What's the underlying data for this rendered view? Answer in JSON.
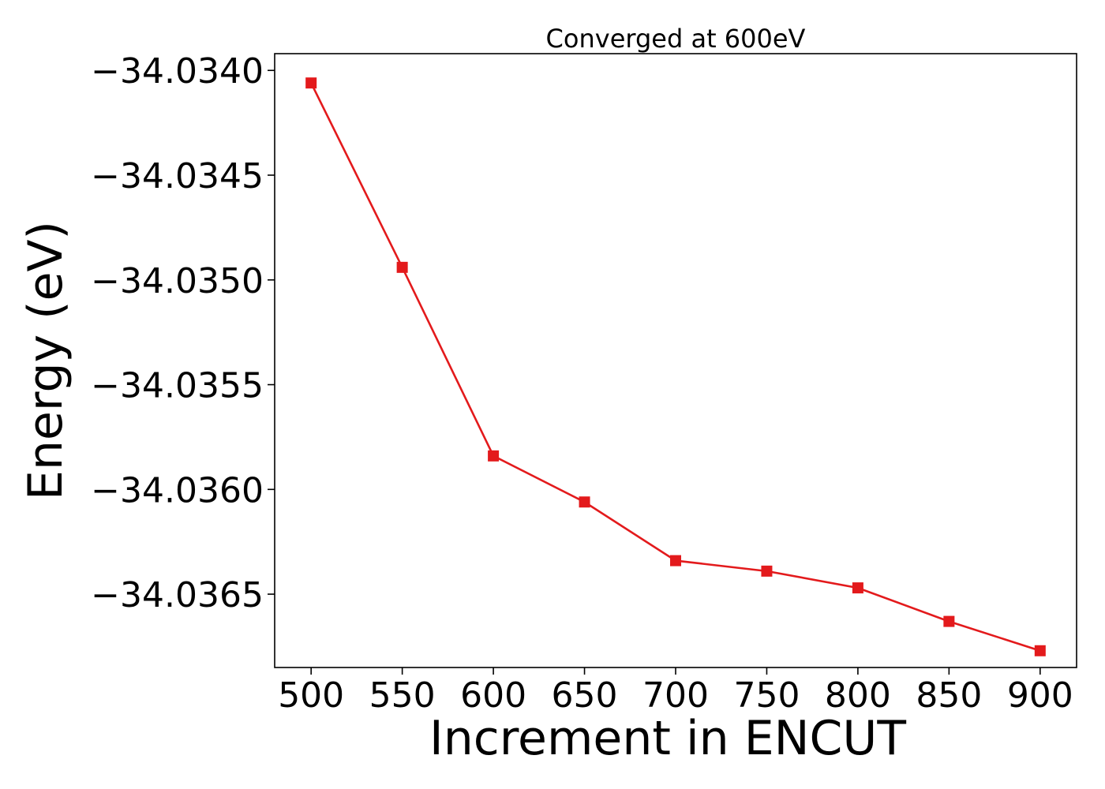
{
  "chart_data": {
    "type": "line",
    "title": "Converged at 600eV",
    "xlabel": "Increment in ENCUT",
    "ylabel": "Energy (eV)",
    "x": [
      500,
      550,
      600,
      650,
      700,
      750,
      800,
      850,
      900
    ],
    "series": [
      {
        "values": [
          -34.03406,
          -34.03494,
          -34.03584,
          -34.03606,
          -34.03634,
          -34.03639,
          -34.03647,
          -34.03663,
          -34.03677
        ],
        "color": "#e31a1c",
        "marker": "square"
      }
    ],
    "xlim": [
      480,
      920
    ],
    "ylim": [
      -34.03685,
      -34.03392
    ],
    "xticks": [
      500,
      550,
      600,
      650,
      700,
      750,
      800,
      850,
      900
    ],
    "xtick_labels": [
      "500",
      "550",
      "600",
      "650",
      "700",
      "750",
      "800",
      "850",
      "900"
    ],
    "yticks": [
      -34.034,
      -34.0345,
      -34.035,
      -34.0355,
      -34.036,
      -34.0365
    ],
    "ytick_labels": [
      "−34.0340",
      "−34.0345",
      "−34.0350",
      "−34.0355",
      "−34.0360",
      "−34.0365"
    ],
    "grid": false,
    "legend": "none"
  }
}
